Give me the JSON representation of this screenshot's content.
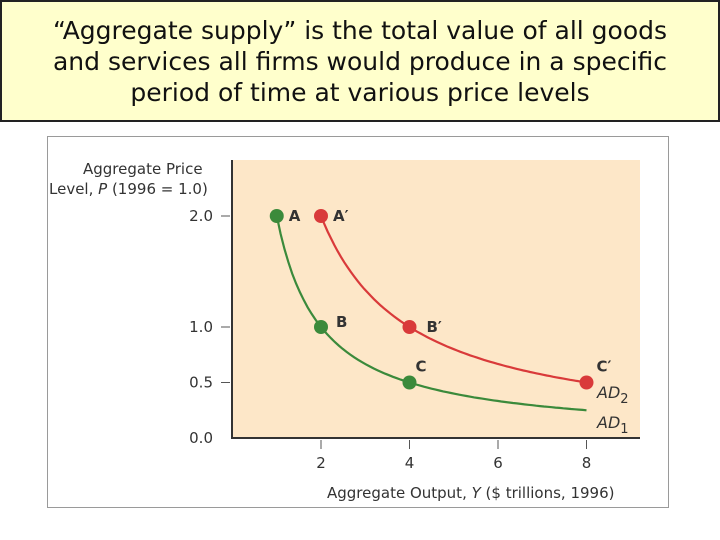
{
  "slide": {
    "title": "“Aggregate supply” is the total value of all goods\nand services all firms would produce in a specific\nperiod of time at various price levels"
  },
  "chart_data": {
    "type": "line",
    "ylabel_line1": "Aggregate Price",
    "ylabel_line2_prefix": "Level, ",
    "ylabel_var": "P",
    "ylabel_line2_suffix": " (1996 = 1.0)",
    "xlabel_prefix": "Aggregate Output, ",
    "xlabel_var": "Y",
    "xlabel_suffix": " ($ trillions, 1996)",
    "xlim": [
      0,
      9
    ],
    "ylim": [
      0,
      2.0
    ],
    "x_ticks": [
      2,
      4,
      6,
      8
    ],
    "x_tick_labels": [
      "2",
      "4",
      "6",
      "8"
    ],
    "y_ticks": [
      0.0,
      0.5,
      1.0,
      2.0
    ],
    "y_tick_labels": [
      "0.0",
      "0.5",
      "1.0",
      "2.0"
    ],
    "grid": false,
    "plot_background": "#fde7c8",
    "series": [
      {
        "name": "AD1",
        "label_main": "AD",
        "label_sub": "1",
        "color": "#3b8a3b",
        "curve_k": 2.0,
        "curve_x_start": 1.0,
        "curve_x_end": 8.0,
        "points": [
          {
            "label": "A",
            "x": 1,
            "y": 2.0
          },
          {
            "label": "B",
            "x": 2,
            "y": 1.0
          },
          {
            "label": "C",
            "x": 4,
            "y": 0.5
          }
        ]
      },
      {
        "name": "AD2",
        "label_main": "AD",
        "label_sub": "2",
        "color": "#d93a3a",
        "curve_k": 4.0,
        "curve_x_start": 2.0,
        "curve_x_end": 8.0,
        "points": [
          {
            "label": "A′",
            "x": 2,
            "y": 2.0
          },
          {
            "label": "B′",
            "x": 4,
            "y": 1.0
          },
          {
            "label": "C′",
            "x": 8,
            "y": 0.5
          }
        ]
      }
    ]
  }
}
